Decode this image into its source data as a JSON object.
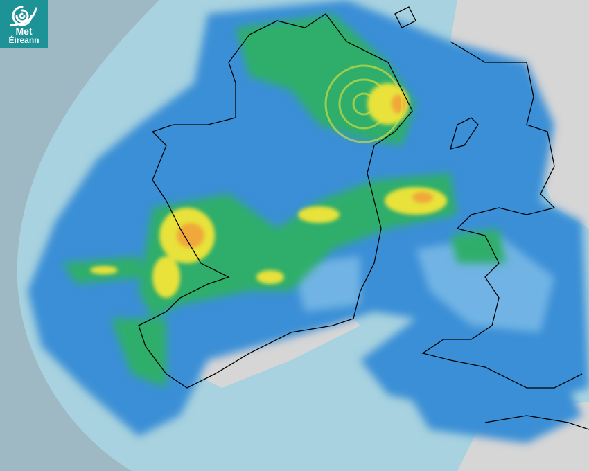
{
  "logo": {
    "line1": "Met",
    "line2": "Éireann",
    "icon": "swirl-logo-icon"
  },
  "map": {
    "type": "precipitation-radar",
    "colors": {
      "outside_coverage": "#9fb9c4",
      "radar_coverage": "#a8d2df",
      "light_rain": "#3a8fd6",
      "moderate_rain": "#2fae6a",
      "heavier_rain": "#e8e23a",
      "heavy_rain": "#f0a83a",
      "land_background": "#d8d8d8",
      "logo_background": "#1d9397",
      "coastline": "#000000"
    }
  }
}
